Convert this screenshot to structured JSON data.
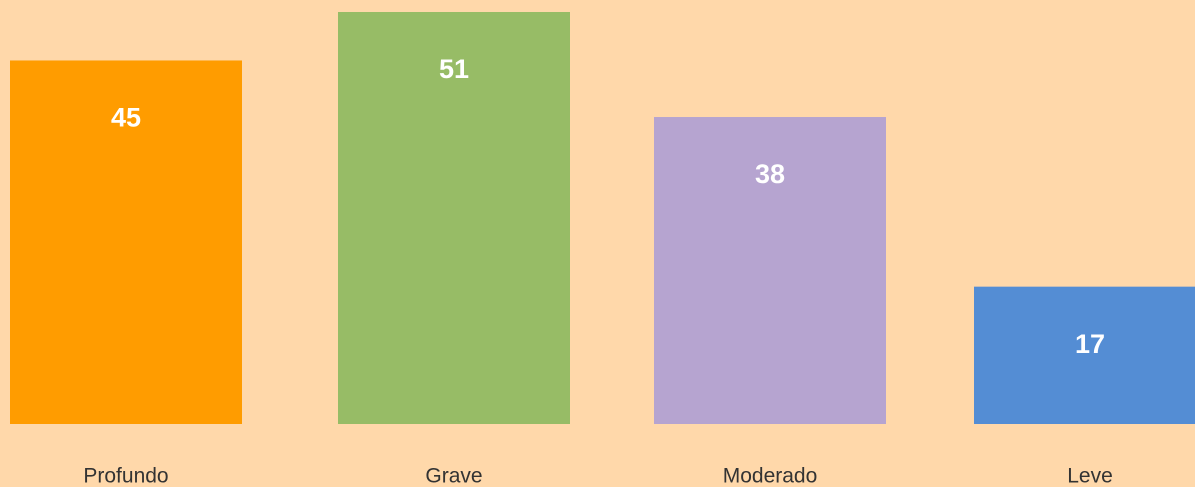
{
  "chart_data": {
    "type": "bar",
    "categories": [
      "Profundo",
      "Grave",
      "Moderado",
      "Leve"
    ],
    "values": [
      45,
      51,
      38,
      17
    ],
    "colors": [
      "#ff9c00",
      "#97bc66",
      "#b6a4d0",
      "#548dd4"
    ]
  }
}
